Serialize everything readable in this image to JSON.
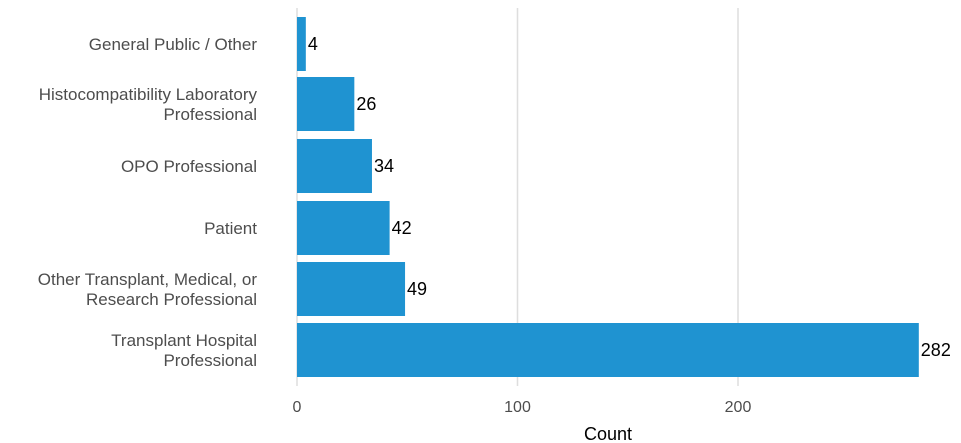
{
  "chart_data": {
    "type": "bar",
    "orientation": "horizontal",
    "categories": [
      "General Public / Other",
      "Histocompatibility Laboratory Professional",
      "OPO Professional",
      "Patient",
      "Other Transplant, Medical, or Research Professional",
      "Transplant Hospital Professional"
    ],
    "category_label_lines": [
      [
        "General Public / Other"
      ],
      [
        "Histocompatibility Laboratory",
        "Professional"
      ],
      [
        "OPO Professional"
      ],
      [
        "Patient"
      ],
      [
        "Other Transplant, Medical, or",
        "Research Professional"
      ],
      [
        "Transplant Hospital",
        "Professional"
      ]
    ],
    "values": [
      4,
      26,
      34,
      42,
      49,
      282
    ],
    "data_labels": [
      "4",
      "26",
      "34",
      "42",
      "49",
      "282"
    ],
    "xlabel": "Count",
    "ylabel": "",
    "xlim": [
      0,
      282
    ],
    "xticks": [
      0,
      100,
      200
    ],
    "xtick_labels": [
      "0",
      "100",
      "200"
    ],
    "grid": true,
    "legend": "none",
    "bar_color": "#1f93d1",
    "gridline_color": "#dedede"
  }
}
